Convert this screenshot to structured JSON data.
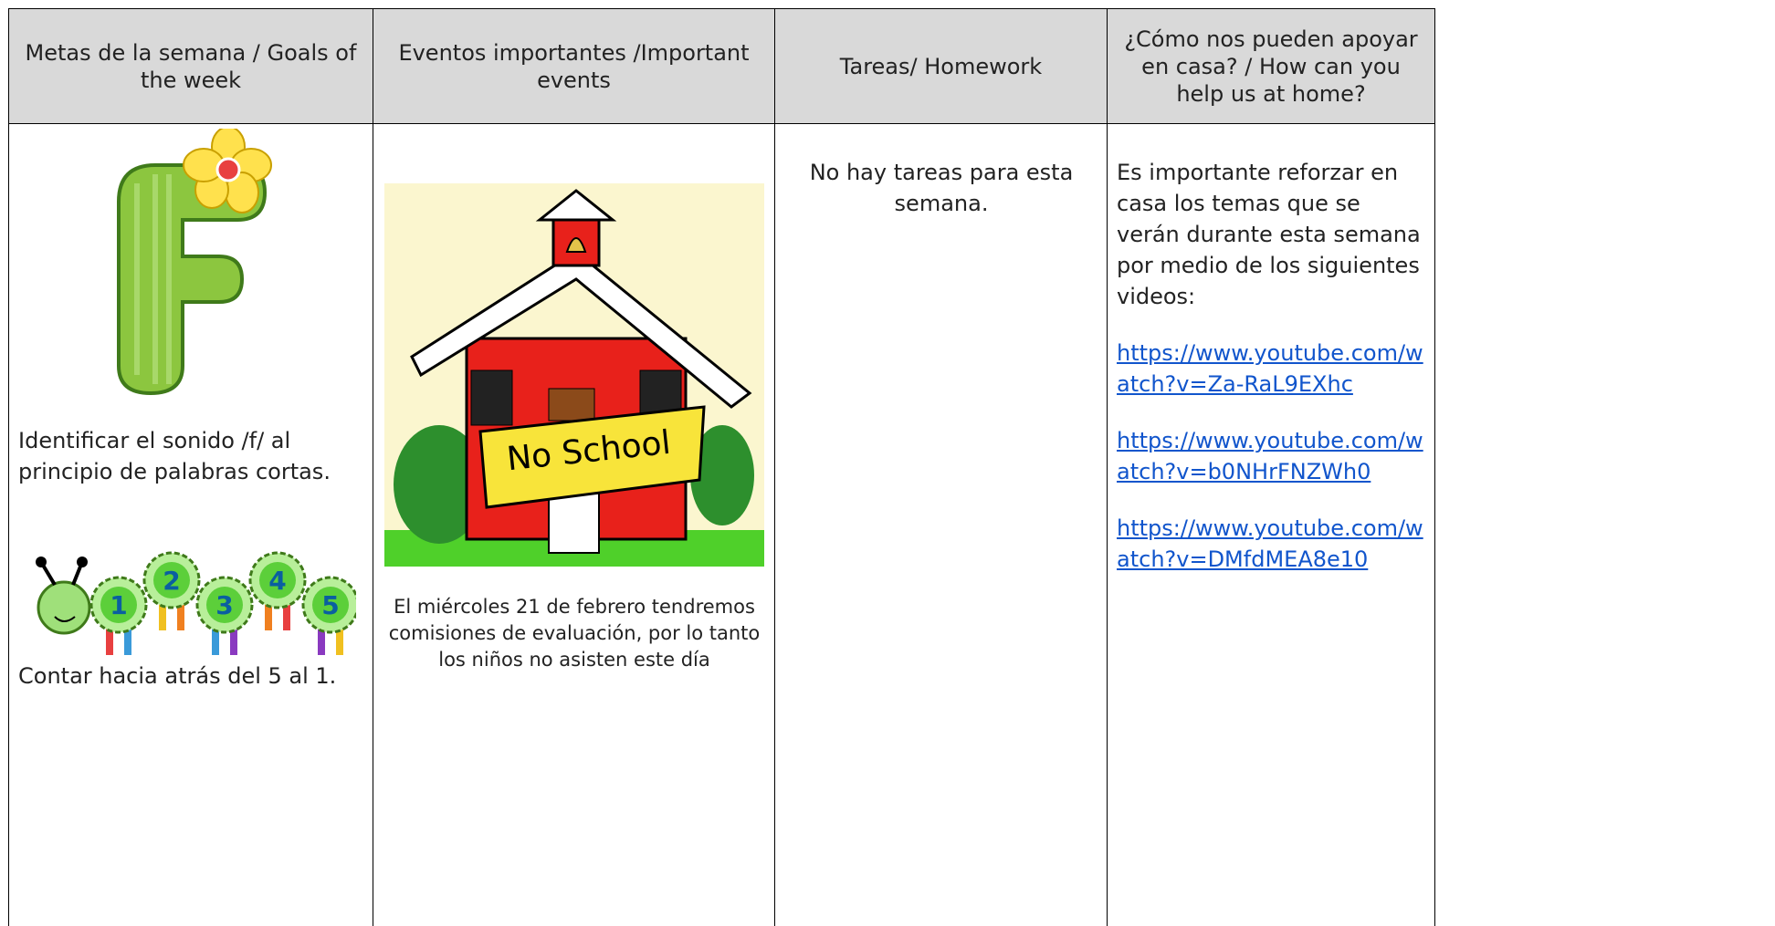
{
  "table": {
    "header": [
      "Metas de la semana / Goals of the week",
      "Eventos importantes /Important events",
      "Tareas/ Homework",
      "¿Cómo nos pueden apoyar en casa? / How can you help us at home?"
    ],
    "goals": {
      "items": [
        "Identificar el sonido /f/ al principio de palabras cortas.",
        "Contar hacia atrás del 5 al 1."
      ],
      "caterpillar": [
        "1",
        "2",
        "3",
        "4",
        "5"
      ]
    },
    "events": {
      "banner": "No School",
      "text": "El miércoles 21 de febrero tendremos comisiones de evaluación, por lo tanto los niños no asisten este día"
    },
    "homework": {
      "text": "No hay tareas para esta semana."
    },
    "help": {
      "text": "Es importante reforzar en casa los temas que se verán durante esta semana por medio de los siguientes videos:",
      "links": [
        "https://www.youtube.com/watch?v=Za-RaL9EXhc",
        "https://www.youtube.com/watch?v=b0NHrFNZWh0",
        "https://www.youtube.com/watch?v=DMfdMEA8e10"
      ]
    }
  }
}
